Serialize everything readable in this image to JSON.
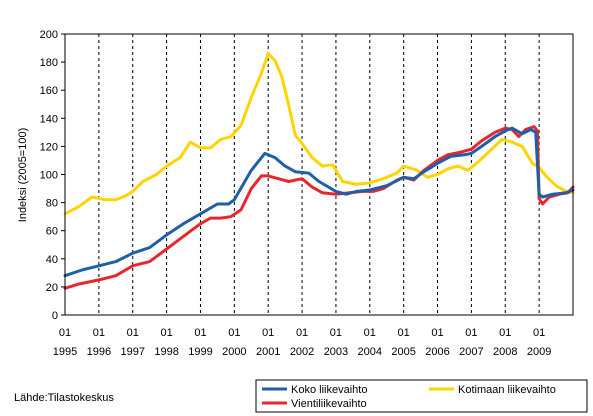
{
  "chart_data": {
    "type": "line",
    "ylabel": "Indeksi (2005=100)",
    "ylim": [
      0,
      200
    ],
    "yticks": [
      "0",
      "20",
      "40",
      "60",
      "80",
      "100",
      "120",
      "140",
      "160",
      "180",
      "200"
    ],
    "xlim": [
      1995.0,
      2010.0
    ],
    "xticks": [
      {
        "month": "01",
        "year": "1995"
      },
      {
        "month": "01",
        "year": "1996"
      },
      {
        "month": "01",
        "year": "1997"
      },
      {
        "month": "01",
        "year": "1998"
      },
      {
        "month": "01",
        "year": "1999"
      },
      {
        "month": "01",
        "year": "2000"
      },
      {
        "month": "01",
        "year": "2001"
      },
      {
        "month": "01",
        "year": "2002"
      },
      {
        "month": "01",
        "year": "2003"
      },
      {
        "month": "01",
        "year": "2004"
      },
      {
        "month": "01",
        "year": "2005"
      },
      {
        "month": "01",
        "year": "2006"
      },
      {
        "month": "01",
        "year": "2007"
      },
      {
        "month": "01",
        "year": "2008"
      },
      {
        "month": "01",
        "year": "2009"
      }
    ],
    "grid": {
      "vertical": "dashed",
      "horizontal": false
    },
    "legend_position": "bottom-right",
    "series": [
      {
        "name": "Koko liikevaihto",
        "color": "#1f5fa8",
        "points": [
          [
            1995.0,
            28
          ],
          [
            1995.5,
            32
          ],
          [
            1996.0,
            35
          ],
          [
            1996.5,
            38
          ],
          [
            1997.0,
            44
          ],
          [
            1997.5,
            48
          ],
          [
            1998.0,
            57
          ],
          [
            1998.5,
            65
          ],
          [
            1999.0,
            72
          ],
          [
            1999.5,
            79
          ],
          [
            1999.83,
            79
          ],
          [
            2000.0,
            82
          ],
          [
            2000.5,
            103
          ],
          [
            2000.9,
            115
          ],
          [
            2001.2,
            112
          ],
          [
            2001.5,
            106
          ],
          [
            2001.8,
            102
          ],
          [
            2002.2,
            101
          ],
          [
            2002.5,
            95
          ],
          [
            2003.0,
            88
          ],
          [
            2003.3,
            86
          ],
          [
            2003.6,
            88
          ],
          [
            2004.0,
            89
          ],
          [
            2004.5,
            92
          ],
          [
            2005.0,
            98
          ],
          [
            2005.3,
            97
          ],
          [
            2005.6,
            102
          ],
          [
            2006.0,
            108
          ],
          [
            2006.4,
            113
          ],
          [
            2006.8,
            114
          ],
          [
            2007.0,
            115
          ],
          [
            2007.3,
            120
          ],
          [
            2007.7,
            127
          ],
          [
            2008.0,
            131
          ],
          [
            2008.2,
            133
          ],
          [
            2008.5,
            129
          ],
          [
            2008.75,
            132
          ],
          [
            2008.9,
            130
          ],
          [
            2009.0,
            86
          ],
          [
            2009.1,
            84
          ],
          [
            2009.4,
            86
          ],
          [
            2009.8,
            87
          ],
          [
            2010.0,
            89
          ]
        ]
      },
      {
        "name": "Kotimaan liikevaihto",
        "color": "#ffd400",
        "points": [
          [
            1995.0,
            72
          ],
          [
            1995.4,
            77
          ],
          [
            1995.8,
            84
          ],
          [
            1996.2,
            82
          ],
          [
            1996.5,
            82
          ],
          [
            1996.8,
            85
          ],
          [
            1997.0,
            88
          ],
          [
            1997.3,
            95
          ],
          [
            1997.7,
            100
          ],
          [
            1998.0,
            106
          ],
          [
            1998.4,
            112
          ],
          [
            1998.7,
            123
          ],
          [
            1999.0,
            119
          ],
          [
            1999.3,
            119
          ],
          [
            1999.6,
            125
          ],
          [
            1999.9,
            127
          ],
          [
            2000.2,
            135
          ],
          [
            2000.5,
            155
          ],
          [
            2000.8,
            172
          ],
          [
            2001.0,
            186
          ],
          [
            2001.2,
            181
          ],
          [
            2001.4,
            170
          ],
          [
            2001.6,
            150
          ],
          [
            2001.8,
            128
          ],
          [
            2002.0,
            122
          ],
          [
            2002.3,
            112
          ],
          [
            2002.6,
            106
          ],
          [
            2002.9,
            107
          ],
          [
            2003.2,
            95
          ],
          [
            2003.6,
            93
          ],
          [
            2004.0,
            94
          ],
          [
            2004.4,
            97
          ],
          [
            2004.8,
            101
          ],
          [
            2005.0,
            106
          ],
          [
            2005.4,
            103
          ],
          [
            2005.7,
            98
          ],
          [
            2006.0,
            100
          ],
          [
            2006.3,
            104
          ],
          [
            2006.6,
            106
          ],
          [
            2006.9,
            103
          ],
          [
            2007.2,
            109
          ],
          [
            2007.6,
            118
          ],
          [
            2007.9,
            125
          ],
          [
            2008.2,
            123
          ],
          [
            2008.5,
            120
          ],
          [
            2008.8,
            108
          ],
          [
            2009.0,
            105
          ],
          [
            2009.2,
            99
          ],
          [
            2009.5,
            92
          ],
          [
            2009.8,
            88
          ],
          [
            2010.0,
            87
          ]
        ]
      },
      {
        "name": "Vientiliikevaihto",
        "color": "#e8262d",
        "points": [
          [
            1995.0,
            19
          ],
          [
            1995.4,
            22
          ],
          [
            1996.0,
            25
          ],
          [
            1996.5,
            28
          ],
          [
            1997.0,
            35
          ],
          [
            1997.5,
            38
          ],
          [
            1998.0,
            47
          ],
          [
            1998.5,
            56
          ],
          [
            1999.0,
            65
          ],
          [
            1999.3,
            69
          ],
          [
            1999.6,
            69
          ],
          [
            1999.9,
            70
          ],
          [
            2000.2,
            75
          ],
          [
            2000.5,
            90
          ],
          [
            2000.8,
            99
          ],
          [
            2001.0,
            99
          ],
          [
            2001.3,
            97
          ],
          [
            2001.6,
            95
          ],
          [
            2002.0,
            97
          ],
          [
            2002.3,
            91
          ],
          [
            2002.6,
            87
          ],
          [
            2003.0,
            86
          ],
          [
            2003.4,
            87
          ],
          [
            2003.8,
            88
          ],
          [
            2004.1,
            88
          ],
          [
            2004.4,
            90
          ],
          [
            2004.8,
            96
          ],
          [
            2005.0,
            98
          ],
          [
            2005.3,
            96
          ],
          [
            2005.6,
            103
          ],
          [
            2006.0,
            110
          ],
          [
            2006.3,
            114
          ],
          [
            2006.7,
            116
          ],
          [
            2007.0,
            118
          ],
          [
            2007.3,
            124
          ],
          [
            2007.7,
            130
          ],
          [
            2008.0,
            133
          ],
          [
            2008.2,
            132
          ],
          [
            2008.4,
            127
          ],
          [
            2008.6,
            132
          ],
          [
            2008.85,
            134
          ],
          [
            2008.95,
            131
          ],
          [
            2009.0,
            83
          ],
          [
            2009.1,
            79
          ],
          [
            2009.3,
            84
          ],
          [
            2009.6,
            86
          ],
          [
            2009.85,
            87
          ],
          [
            2010.0,
            91
          ]
        ]
      }
    ]
  },
  "source": "Lähde:Tilastokeskus",
  "legend": {
    "koko": "Koko liikevaihto",
    "kotimaan": "Kotimaan liikevaihto",
    "vienti": "Vientiliikevaihto"
  }
}
